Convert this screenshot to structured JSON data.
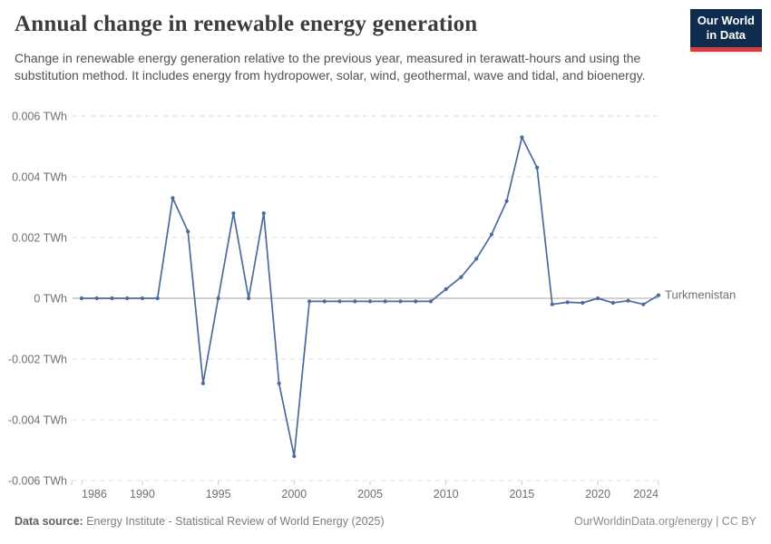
{
  "header": {
    "title": "Annual change in renewable energy generation",
    "subtitle": "Change in renewable energy generation relative to the previous year, measured in terawatt-hours and using the substitution method. It includes energy from hydropower, solar, wind, geothermal, wave and tidal, and bioenergy.",
    "logo": {
      "line1": "Our World",
      "line2": "in Data",
      "bg_color": "#0e2d4e",
      "accent_color": "#d23e42"
    }
  },
  "chart_data": {
    "type": "line",
    "title": "Annual change in renewable energy generation",
    "unit": "TWh",
    "grid": "horizontal-dashed",
    "markers": true,
    "legend_position": "end-of-line-label",
    "xlim": [
      1985.3,
      2024
    ],
    "ylim": [
      -0.006,
      0.006
    ],
    "xticks": [
      1986,
      1990,
      1995,
      2000,
      2005,
      2010,
      2015,
      2020,
      2024
    ],
    "yticks": [
      {
        "value": 0.006,
        "label": "0.006 TWh"
      },
      {
        "value": 0.004,
        "label": "0.004 TWh"
      },
      {
        "value": 0.002,
        "label": "0.002 TWh"
      },
      {
        "value": 0,
        "label": "0 TWh"
      },
      {
        "value": -0.002,
        "label": "-0.002 TWh"
      },
      {
        "value": -0.004,
        "label": "-0.004 TWh"
      },
      {
        "value": -0.006,
        "label": "-0.006 TWh"
      }
    ],
    "series": [
      {
        "name": "Turkmenistan",
        "color": "#4c6a9c",
        "x": [
          1986,
          1987,
          1988,
          1989,
          1990,
          1991,
          1992,
          1993,
          1994,
          1995,
          1996,
          1997,
          1998,
          1999,
          2000,
          2001,
          2002,
          2003,
          2004,
          2005,
          2006,
          2007,
          2008,
          2009,
          2010,
          2011,
          2012,
          2013,
          2014,
          2015,
          2016,
          2017,
          2018,
          2019,
          2020,
          2021,
          2022,
          2023,
          2024
        ],
        "values": [
          0,
          0,
          0,
          0,
          0,
          0,
          0.0033,
          0.0022,
          -0.0028,
          0,
          0.0028,
          0,
          0.0028,
          -0.0028,
          -0.0052,
          -0.0001,
          -0.0001,
          -0.0001,
          -0.0001,
          -0.0001,
          -0.0001,
          -0.0001,
          -0.0001,
          -0.0001,
          0.0003,
          0.0007,
          0.0013,
          0.0021,
          0.0032,
          0.0053,
          0.0043,
          -0.0002,
          -0.00013,
          -0.00015,
          0,
          -0.00015,
          -8e-05,
          -0.0002,
          0.0001
        ]
      }
    ],
    "colors": {
      "gridline": "#dcdcdc",
      "zero_line": "#a6a6a6",
      "tick": "#c9c9c9"
    }
  },
  "footer": {
    "source_label": "Data source:",
    "source_text": "Energy Institute - Statistical Review of World Energy (2025)",
    "credit": "OurWorldinData.org/energy | CC BY"
  }
}
